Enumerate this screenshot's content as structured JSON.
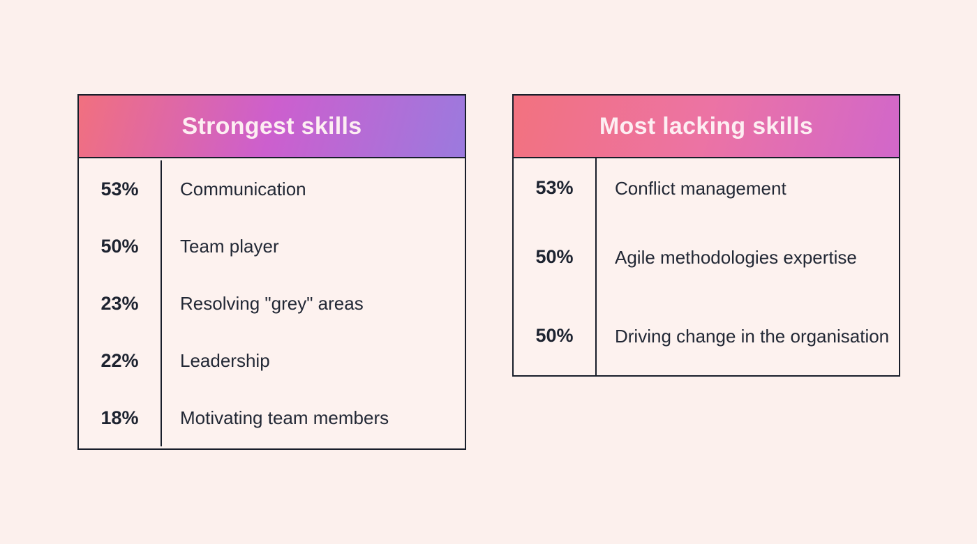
{
  "page": {
    "background": "#fcf0ed",
    "border_color": "#181e2a",
    "text_color": "#1d2330",
    "header_text_color": "#fdeef2"
  },
  "tables": [
    {
      "title": "Strongest skills",
      "gradient": [
        "#f1707f",
        "#cc5fce",
        "#9b7ade"
      ],
      "rows": [
        {
          "percent": "53%",
          "skill": "Communication"
        },
        {
          "percent": "50%",
          "skill": "Team player"
        },
        {
          "percent": "23%",
          "skill": "Resolving \"grey\" areas"
        },
        {
          "percent": "22%",
          "skill": "Leadership"
        },
        {
          "percent": "18%",
          "skill": "Motivating team members"
        }
      ]
    },
    {
      "title": "Most lacking skills",
      "gradient": [
        "#f2727f",
        "#ec73a4",
        "#d167ca"
      ],
      "rows": [
        {
          "percent": "53%",
          "skill": "Conflict management"
        },
        {
          "percent": "50%",
          "skill": "Agile methodologies expertise"
        },
        {
          "percent": "50%",
          "skill": "Driving change in the organisation"
        }
      ]
    }
  ]
}
